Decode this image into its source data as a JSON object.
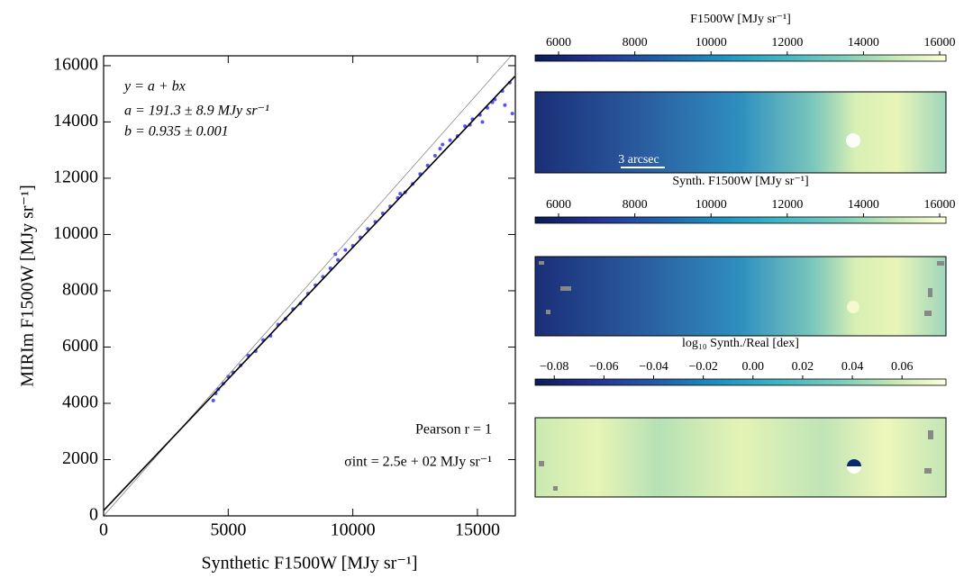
{
  "chart_data": [
    {
      "type": "scatter",
      "xlabel": "Synthetic F1500W [MJy sr⁻¹]",
      "ylabel": "MIRIm F1500W [MJy sr⁻¹]",
      "annotations_top": [
        "y = a + bx",
        "a = 191.3 ± 8.9 MJy sr⁻¹",
        "b = 0.935 ± 0.001"
      ],
      "annotations_bottom": [
        "Pearson r = 1",
        "σint = 2.5e + 02 MJy sr⁻¹"
      ],
      "color": "#1a1aff",
      "x": [
        4400,
        4500,
        4600,
        4800,
        5000,
        5200,
        5500,
        5800,
        6100,
        6400,
        6700,
        7000,
        7300,
        7600,
        7900,
        8200,
        8500,
        8800,
        9100,
        9400,
        9700,
        10000,
        10300,
        10600,
        10900,
        11200,
        11500,
        11800,
        12100,
        12400,
        12700,
        13000,
        13300,
        13600,
        13900,
        14200,
        14500,
        14800,
        15100,
        15400,
        15700,
        16000,
        16300,
        15200,
        15600,
        16100,
        16400,
        14700,
        13500,
        11900,
        9300
      ],
      "y": [
        4100,
        4350,
        4500,
        4700,
        4950,
        5100,
        5350,
        5700,
        5850,
        6250,
        6400,
        6800,
        7000,
        7350,
        7550,
        7900,
        8200,
        8500,
        8800,
        9100,
        9450,
        9600,
        9900,
        10200,
        10450,
        10750,
        11000,
        11300,
        11500,
        11800,
        12150,
        12450,
        12800,
        13200,
        13350,
        13500,
        13850,
        14100,
        14250,
        14500,
        14800,
        15100,
        15400,
        14000,
        14700,
        14600,
        14300,
        13900,
        13050,
        11450,
        9300
      ],
      "fit_line": {
        "x": [
          0,
          16500
        ],
        "y": [
          191.3,
          15619.8
        ]
      },
      "reference_line": {
        "x": [
          0,
          16400
        ],
        "y": [
          0,
          16400
        ]
      },
      "xlim": [
        0,
        16520
      ],
      "xticks": [
        0,
        5000,
        10000,
        15000
      ],
      "ylim": [
        0,
        16350
      ],
      "yticks": [
        0,
        2000,
        4000,
        6000,
        8000,
        10000,
        12000,
        14000,
        16000
      ]
    },
    {
      "type": "colorbar",
      "title": "F1500W [MJy sr⁻¹]",
      "xlim": [
        5385,
        16165
      ],
      "xticks": [
        6000,
        8000,
        10000,
        12000,
        14000,
        16000
      ],
      "scale_bar": "3 arcsec"
    },
    {
      "type": "colorbar",
      "title": "Synth. F1500W [MJy sr⁻¹]",
      "xlim": [
        5385,
        16165
      ],
      "xticks": [
        6000,
        8000,
        10000,
        12000,
        14000,
        16000
      ]
    },
    {
      "type": "colorbar",
      "title": "log₁₀ Synth./Real [dex]",
      "xlim": [
        -0.0877,
        0.0777
      ],
      "xticks": [
        {
          "value": -0.08,
          "label": "−0.08"
        },
        {
          "value": -0.06,
          "label": "−0.06"
        },
        {
          "value": -0.04,
          "label": "−0.04"
        },
        {
          "value": -0.02,
          "label": "−0.02"
        },
        {
          "value": 0,
          "label": "0.00"
        },
        0.02,
        0.04,
        0.06
      ]
    }
  ]
}
